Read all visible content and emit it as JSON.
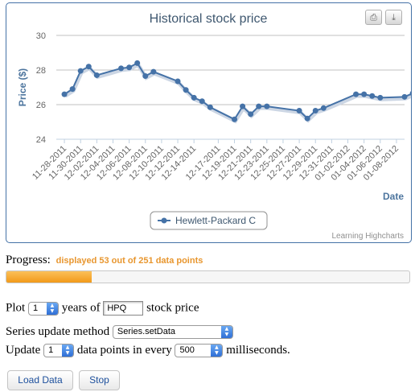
{
  "chart_data": {
    "type": "line",
    "title": "Historical stock price",
    "xlabel": "Date",
    "ylabel": "Price ($)",
    "ylim": [
      24,
      30
    ],
    "yticks": [
      24,
      26,
      28,
      30
    ],
    "grid": true,
    "legend_position": "bottom-center",
    "credits": "Learning Highcharts",
    "x_range": [
      "2011-11-27",
      "2012-01-09"
    ],
    "xtick_labels": [
      "11-28-2011",
      "11-30-2011",
      "12-02-2011",
      "12-04-2011",
      "12-06-2011",
      "12-08-2011",
      "12-10-2011",
      "12-12-2011",
      "12-14-2011",
      "12-17-2011",
      "12-19-2011",
      "12-21-2011",
      "12-23-2011",
      "12-25-2011",
      "12-27-2011",
      "12-29-2011",
      "12-31-2011",
      "01-02-2012",
      "01-04-2012",
      "01-06-2012",
      "01-08-2012"
    ],
    "series": [
      {
        "name": "Hewlett-Packard C",
        "color": "#4572a7",
        "x": [
          "2011-11-28",
          "2011-11-29",
          "2011-11-30",
          "2011-12-01",
          "2011-12-02",
          "2011-12-05",
          "2011-12-06",
          "2011-12-07",
          "2011-12-08",
          "2011-12-09",
          "2011-12-12",
          "2011-12-13",
          "2011-12-14",
          "2011-12-15",
          "2011-12-16",
          "2011-12-19",
          "2011-12-20",
          "2011-12-21",
          "2011-12-22",
          "2011-12-23",
          "2011-12-27",
          "2011-12-28",
          "2011-12-29",
          "2011-12-30",
          "2012-01-03",
          "2012-01-04",
          "2012-01-05",
          "2012-01-06",
          "2012-01-09",
          "2012-01-10"
        ],
        "values": [
          26.6,
          26.9,
          27.95,
          28.2,
          27.7,
          28.1,
          28.15,
          28.4,
          27.65,
          27.9,
          27.35,
          26.85,
          26.4,
          26.2,
          25.85,
          25.15,
          25.9,
          25.45,
          25.9,
          25.9,
          25.65,
          25.2,
          25.65,
          25.8,
          26.6,
          26.6,
          26.5,
          26.4,
          26.45,
          26.65
        ]
      }
    ]
  },
  "export_buttons": {
    "print_icon": "printer-icon",
    "export_icon": "download-icon"
  },
  "progress": {
    "label": "Progress:",
    "status": "displayed 53 out of 251 data points",
    "fraction": 0.211
  },
  "controls": {
    "plot_prefix": "Plot",
    "years_value": "1",
    "years_suffix": "years of",
    "symbol_value": "HPQ",
    "symbol_suffix": "stock price",
    "method_label": "Series update method",
    "method_value": "Series.setData",
    "update_prefix": "Update",
    "points_value": "1",
    "points_suffix": "data points in every",
    "interval_value": "500",
    "interval_suffix": "milliseconds."
  },
  "buttons": {
    "load": "Load Data",
    "stop": "Stop"
  }
}
